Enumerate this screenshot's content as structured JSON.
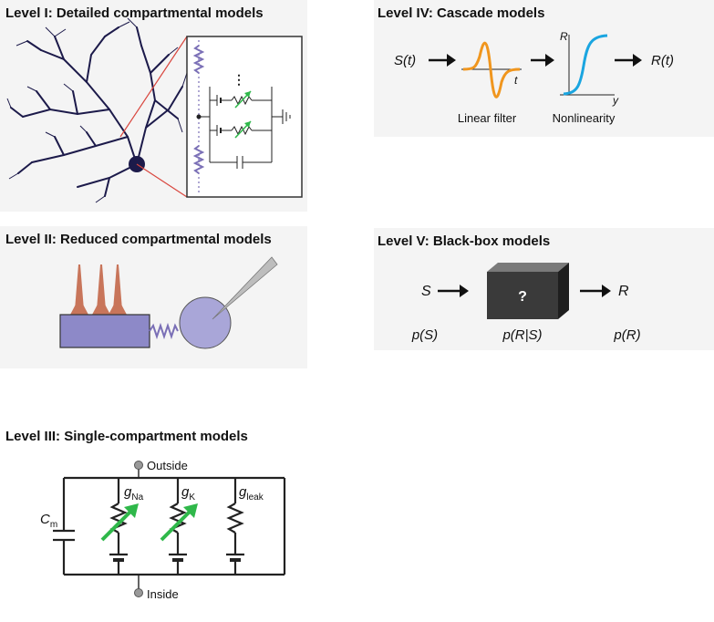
{
  "panels": {
    "level1": {
      "title": "Level I: Detailed compartmental models",
      "ellipsis": "⋮"
    },
    "level2": {
      "title": "Level II: Reduced compartmental models"
    },
    "level3": {
      "title": "Level III: Single-compartment models",
      "outside": "Outside",
      "inside": "Inside",
      "cm": {
        "main": "C",
        "sub": "m"
      },
      "gna": {
        "main": "g",
        "sub": "Na"
      },
      "gk": {
        "main": "g",
        "sub": "K"
      },
      "gleak": {
        "main": "g",
        "sub": "leak"
      }
    },
    "level4": {
      "title": "Level IV: Cascade models",
      "input": "S(t)",
      "output": "R(t)",
      "filter_axis": "t",
      "nl_x": "y",
      "nl_y": "R",
      "filter_label": "Linear filter",
      "nl_label": "Nonlinearity"
    },
    "level5": {
      "title": "Level V: Black-box models",
      "input": "S",
      "output": "R",
      "box": "?",
      "p_in": "p(S)",
      "p_cond": "p(R|S)",
      "p_out": "p(R)"
    }
  },
  "colors": {
    "neuron": "#1c1a4a",
    "resistor_purple": "#7a6fb6",
    "green_arrow": "#2fb84a",
    "red_line": "#d9463e",
    "filter_orange": "#f0961e",
    "sigmoid_blue": "#1aa5e0",
    "dendrite_tan": "#c8755a",
    "soma_lavender": "#a9a6d8"
  },
  "icons": [
    "arrow-right-icon",
    "electrode-icon",
    "spring-icon",
    "ground-icon"
  ]
}
